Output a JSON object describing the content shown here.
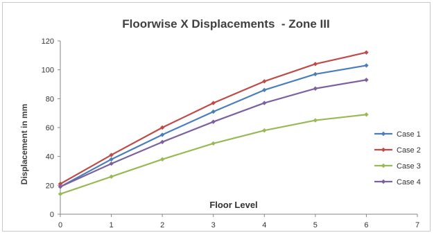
{
  "chart_data": {
    "type": "line",
    "title": "Floorwise X Displacements  - Zone III",
    "xlabel": "Floor Level",
    "ylabel": "Displacement in mm",
    "xlim": [
      0,
      7
    ],
    "ylim": [
      0,
      120
    ],
    "xticks": [
      0,
      1,
      2,
      3,
      4,
      5,
      6,
      7
    ],
    "yticks": [
      0,
      20,
      40,
      60,
      80,
      100,
      120
    ],
    "grid": false,
    "legend": "right",
    "x": [
      0,
      1,
      2,
      3,
      4,
      5,
      6
    ],
    "series": [
      {
        "name": "Case 1",
        "color": "#4a7ebb",
        "values": [
          19,
          38,
          55,
          71,
          86,
          97,
          103
        ]
      },
      {
        "name": "Case 2",
        "color": "#be4b48",
        "values": [
          21,
          41,
          60,
          77,
          92,
          104,
          112
        ]
      },
      {
        "name": "Case 3",
        "color": "#98b954",
        "values": [
          14,
          26,
          38,
          49,
          58,
          65,
          69
        ]
      },
      {
        "name": "Case 4",
        "color": "#7d60a0",
        "values": [
          19,
          35,
          50,
          64,
          77,
          87,
          93
        ]
      }
    ]
  }
}
